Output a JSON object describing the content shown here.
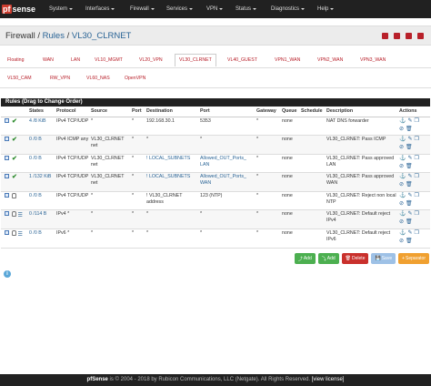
{
  "nav": {
    "brand_pf": "pf",
    "brand_rest": "sense",
    "menus": [
      "System",
      "Interfaces",
      "Firewall",
      "Services",
      "VPN",
      "Status",
      "Diagnostics",
      "Help"
    ]
  },
  "breadcrumb": {
    "part1": "Firewall",
    "part2": "Rules",
    "part3": "VL30_CLRNET"
  },
  "tabs": [
    "Floating",
    "WAN",
    "LAN",
    "VL10_MGMT",
    "VL20_VPN",
    "VL30_CLRNET",
    "VL40_GUEST",
    "VPN1_WAN",
    "VPN2_WAN",
    "VPN3_WAN",
    "VL50_CAM",
    "RW_VPN",
    "VL60_NAS",
    "OpenVPN"
  ],
  "active_tab": "VL30_CLRNET",
  "panel_title": "Rules (Drag to Change Order)",
  "columns": [
    "",
    "",
    "States",
    "Protocol",
    "Source",
    "Port",
    "Destination",
    "Port",
    "Gateway",
    "Queue",
    "Schedule",
    "Description",
    "Actions"
  ],
  "rows": [
    {
      "status": "pass",
      "states": "4 /8 KiB",
      "proto": "IPv4 TCP/UDP",
      "source": "*",
      "sport": "*",
      "dest": "192.168.30.1",
      "dport": "5353",
      "gw": "*",
      "queue": "none",
      "sched": "",
      "desc": "NAT DNS forwarder"
    },
    {
      "status": "pass",
      "states": "0 /0 B",
      "proto": "IPv4 ICMP any",
      "source": "VL30_CLRNET net",
      "sport": "*",
      "dest": "*",
      "dport": "*",
      "gw": "*",
      "queue": "none",
      "sched": "",
      "desc": "VL30_CLRNET: Pass ICMP"
    },
    {
      "status": "pass",
      "states": "0 /0 B",
      "proto": "IPv4 TCP/UDP",
      "source": "VL30_CLRNET net",
      "sport": "*",
      "dest": "! LOCAL_SUBNETS",
      "dport": "Allowed_OUT_Ports_ LAN",
      "gw": "*",
      "queue": "none",
      "sched": "",
      "desc": "VL30_CLRNET: Pass approved LAN"
    },
    {
      "status": "pass",
      "states": "1 /132 KiB",
      "proto": "IPv4 TCP/UDP",
      "source": "VL30_CLRNET net",
      "sport": "*",
      "dest": "! LOCAL_SUBNETS",
      "dport": "Allowed_OUT_Ports_ WAN",
      "gw": "*",
      "queue": "none",
      "sched": "",
      "desc": "VL30_CLRNET: Pass approved WAN"
    },
    {
      "status": "reject",
      "states": "0 /0 B",
      "proto": "IPv4 TCP/UDP",
      "source": "*",
      "sport": "*",
      "dest": "! VL30_CLRNET address",
      "dport": "123 (NTP)",
      "gw": "*",
      "queue": "none",
      "sched": "",
      "desc": "VL30_CLRNET: Reject non local NTP"
    },
    {
      "status": "reject-log",
      "states": "0 /114 B",
      "proto": "IPv4 *",
      "source": "*",
      "sport": "*",
      "dest": "*",
      "dport": "*",
      "gw": "*",
      "queue": "none",
      "sched": "",
      "desc": "VL30_CLRNET: Default reject IPv4"
    },
    {
      "status": "reject-log",
      "states": "0 /0 B",
      "proto": "IPv6 *",
      "source": "*",
      "sport": "*",
      "dest": "*",
      "dport": "*",
      "gw": "*",
      "queue": "none",
      "sched": "",
      "desc": "VL30_CLRNET: Default reject IPv6"
    }
  ],
  "buttons": {
    "add_top": "Add",
    "add_bottom": "Add",
    "delete": "Delete",
    "save": "Save",
    "separator": "Separator"
  },
  "footer": {
    "brand": "pfSense",
    "text": " is © 2004 - 2018 by Rubicon Communications, LLC (Netgate). All Rights Reserved. ",
    "license": "[view license]"
  },
  "colors": {
    "navbar": "#212121",
    "accent_red": "#b8202a",
    "link_blue": "#2a6496",
    "pass_green": "#2e8b2e"
  }
}
